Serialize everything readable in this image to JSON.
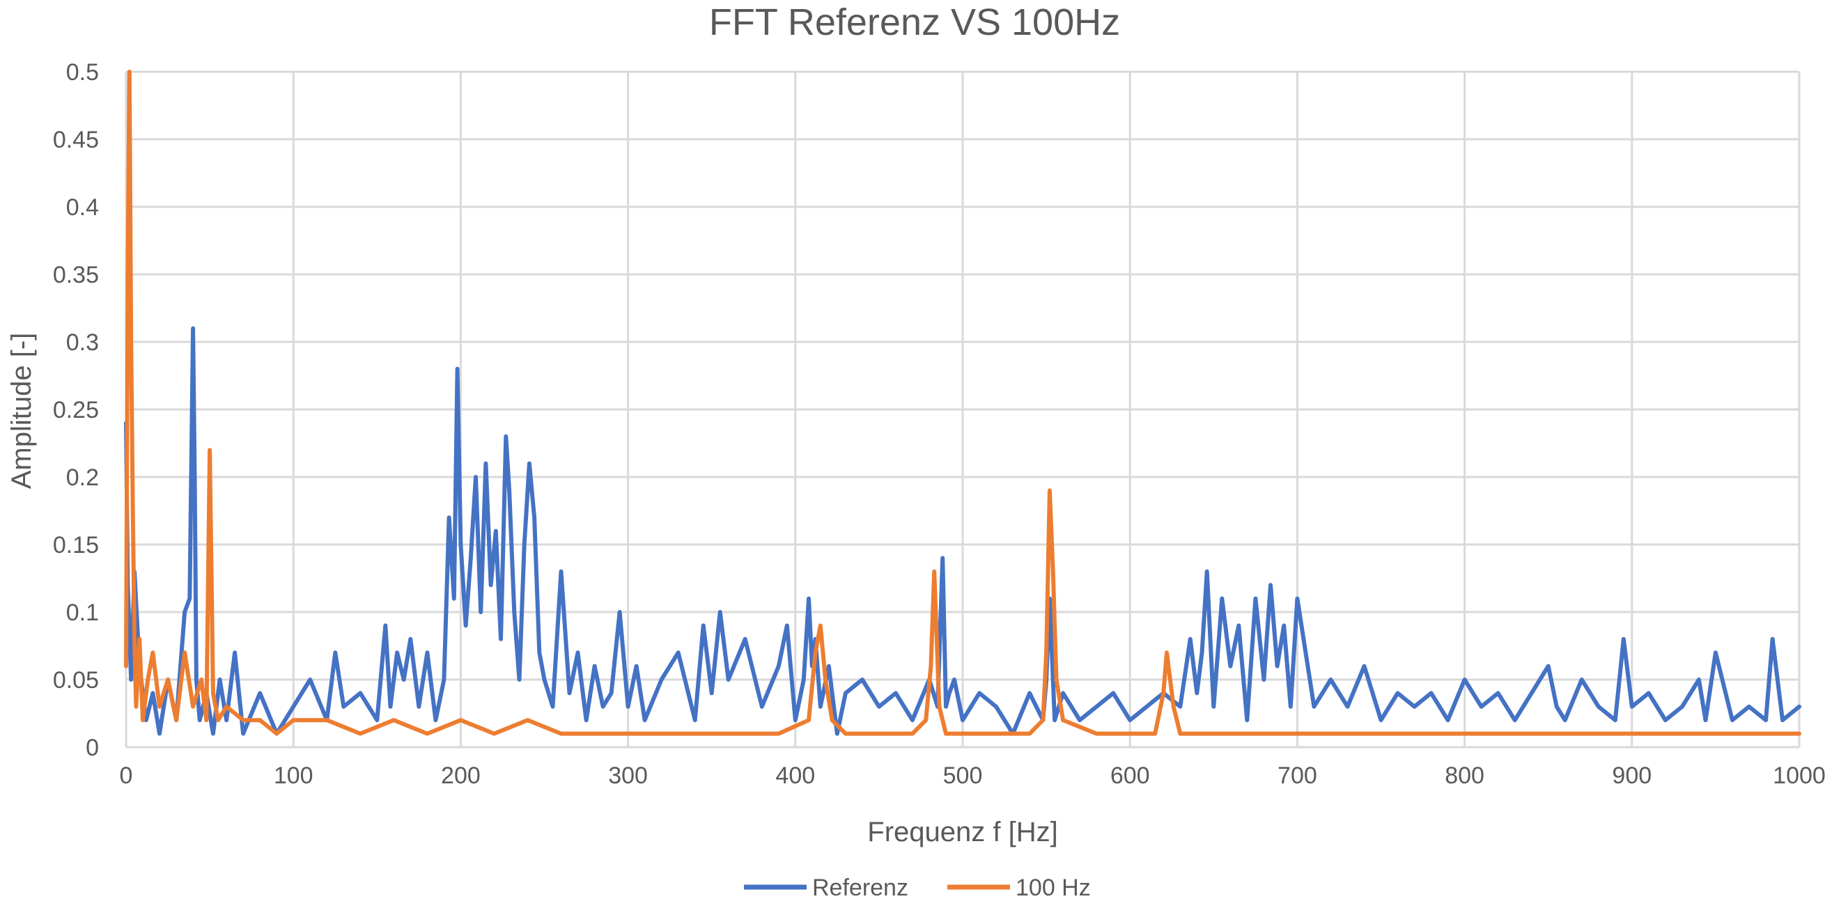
{
  "chart_data": {
    "type": "line",
    "title": "FFT Referenz VS 100Hz",
    "xlabel": "Frequenz f [Hz]",
    "ylabel": "Amplitude [-]",
    "xlim": [
      0,
      1000
    ],
    "ylim": [
      0,
      0.5
    ],
    "x_ticks": [
      "0",
      "100",
      "200",
      "300",
      "400",
      "500",
      "600",
      "700",
      "800",
      "900",
      "1000"
    ],
    "y_ticks": [
      "0",
      "0.05",
      "0.1",
      "0.15",
      "0.2",
      "0.25",
      "0.3",
      "0.35",
      "0.4",
      "0.45",
      "0.5"
    ],
    "grid": true,
    "legend_position": "bottom",
    "colors": {
      "Referenz": "#4472c4",
      "100 Hz": "#ed7d31"
    },
    "series": [
      {
        "name": "Referenz",
        "x": [
          0,
          1,
          3,
          5,
          8,
          12,
          16,
          20,
          25,
          30,
          35,
          38,
          40,
          41,
          42,
          44,
          48,
          52,
          56,
          60,
          65,
          70,
          80,
          90,
          100,
          110,
          120,
          125,
          130,
          140,
          150,
          155,
          158,
          162,
          166,
          170,
          175,
          180,
          185,
          190,
          193,
          196,
          198,
          200,
          203,
          206,
          209,
          212,
          215,
          218,
          221,
          224,
          227,
          229,
          232,
          235,
          238,
          241,
          244,
          247,
          250,
          255,
          260,
          265,
          270,
          275,
          280,
          285,
          290,
          295,
          300,
          305,
          310,
          320,
          330,
          340,
          345,
          350,
          355,
          360,
          370,
          380,
          390,
          395,
          400,
          405,
          408,
          410,
          412,
          415,
          420,
          425,
          430,
          440,
          450,
          460,
          470,
          480,
          485,
          488,
          490,
          492,
          495,
          500,
          510,
          520,
          530,
          540,
          548,
          550,
          552,
          555,
          560,
          570,
          580,
          590,
          600,
          610,
          620,
          630,
          636,
          640,
          643,
          646,
          650,
          655,
          660,
          665,
          670,
          675,
          680,
          684,
          688,
          692,
          696,
          700,
          705,
          710,
          720,
          730,
          740,
          750,
          760,
          770,
          780,
          790,
          800,
          810,
          820,
          830,
          840,
          850,
          855,
          860,
          870,
          880,
          890,
          895,
          900,
          910,
          920,
          930,
          940,
          944,
          950,
          960,
          970,
          980,
          984,
          990,
          1000
        ],
        "values": [
          0.24,
          0.12,
          0.05,
          0.13,
          0.06,
          0.02,
          0.04,
          0.01,
          0.05,
          0.02,
          0.1,
          0.11,
          0.31,
          0.2,
          0.05,
          0.02,
          0.04,
          0.01,
          0.05,
          0.02,
          0.07,
          0.01,
          0.04,
          0.01,
          0.03,
          0.05,
          0.02,
          0.07,
          0.03,
          0.04,
          0.02,
          0.09,
          0.03,
          0.07,
          0.05,
          0.08,
          0.03,
          0.07,
          0.02,
          0.05,
          0.17,
          0.11,
          0.28,
          0.15,
          0.09,
          0.14,
          0.2,
          0.1,
          0.21,
          0.12,
          0.16,
          0.08,
          0.23,
          0.19,
          0.1,
          0.05,
          0.15,
          0.21,
          0.17,
          0.07,
          0.05,
          0.03,
          0.13,
          0.04,
          0.07,
          0.02,
          0.06,
          0.03,
          0.04,
          0.1,
          0.03,
          0.06,
          0.02,
          0.05,
          0.07,
          0.02,
          0.09,
          0.04,
          0.1,
          0.05,
          0.08,
          0.03,
          0.06,
          0.09,
          0.02,
          0.05,
          0.11,
          0.06,
          0.08,
          0.03,
          0.06,
          0.01,
          0.04,
          0.05,
          0.03,
          0.04,
          0.02,
          0.05,
          0.03,
          0.14,
          0.03,
          0.04,
          0.05,
          0.02,
          0.04,
          0.03,
          0.01,
          0.04,
          0.02,
          0.05,
          0.11,
          0.02,
          0.04,
          0.02,
          0.03,
          0.04,
          0.02,
          0.03,
          0.04,
          0.03,
          0.08,
          0.04,
          0.07,
          0.13,
          0.03,
          0.11,
          0.06,
          0.09,
          0.02,
          0.11,
          0.05,
          0.12,
          0.06,
          0.09,
          0.03,
          0.11,
          0.07,
          0.03,
          0.05,
          0.03,
          0.06,
          0.02,
          0.04,
          0.03,
          0.04,
          0.02,
          0.05,
          0.03,
          0.04,
          0.02,
          0.04,
          0.06,
          0.03,
          0.02,
          0.05,
          0.03,
          0.02,
          0.08,
          0.03,
          0.04,
          0.02,
          0.03,
          0.05,
          0.02,
          0.07,
          0.02,
          0.03,
          0.02,
          0.08,
          0.02,
          0.03
        ]
      },
      {
        "name": "100 Hz",
        "x": [
          0,
          1,
          2,
          3,
          4,
          5,
          6,
          8,
          10,
          13,
          16,
          20,
          25,
          30,
          35,
          40,
          45,
          48,
          50,
          52,
          55,
          60,
          70,
          80,
          90,
          100,
          120,
          140,
          160,
          180,
          200,
          220,
          240,
          260,
          280,
          300,
          330,
          360,
          390,
          408,
          412,
          415,
          418,
          422,
          430,
          450,
          470,
          478,
          481,
          483,
          486,
          490,
          500,
          520,
          540,
          548,
          550,
          552,
          554,
          556,
          560,
          580,
          600,
          615,
          620,
          622,
          626,
          630,
          650,
          680,
          700,
          720,
          750,
          780,
          800,
          830,
          860,
          890,
          920,
          950,
          980,
          990,
          1000
        ],
        "values": [
          0.06,
          0.35,
          0.5,
          0.3,
          0.18,
          0.08,
          0.03,
          0.08,
          0.02,
          0.05,
          0.07,
          0.03,
          0.05,
          0.02,
          0.07,
          0.03,
          0.05,
          0.02,
          0.22,
          0.04,
          0.02,
          0.03,
          0.02,
          0.02,
          0.01,
          0.02,
          0.02,
          0.01,
          0.02,
          0.01,
          0.02,
          0.01,
          0.02,
          0.01,
          0.01,
          0.01,
          0.01,
          0.01,
          0.01,
          0.02,
          0.07,
          0.09,
          0.05,
          0.02,
          0.01,
          0.01,
          0.01,
          0.02,
          0.06,
          0.13,
          0.03,
          0.01,
          0.01,
          0.01,
          0.01,
          0.02,
          0.07,
          0.19,
          0.13,
          0.05,
          0.02,
          0.01,
          0.01,
          0.01,
          0.04,
          0.07,
          0.03,
          0.01,
          0.01,
          0.01,
          0.01,
          0.01,
          0.01,
          0.01,
          0.01,
          0.01,
          0.01,
          0.01,
          0.01,
          0.01,
          0.01,
          0.01,
          0.01
        ]
      }
    ]
  }
}
